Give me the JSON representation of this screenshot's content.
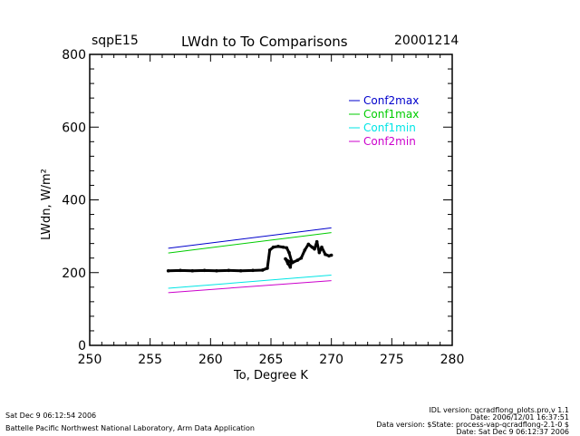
{
  "header": {
    "site": "sqpE15",
    "title": "LWdn to To Comparisons",
    "date": "20001214"
  },
  "footer": {
    "left_timestamp": "Sat Dec  9 06:12:54 2006",
    "left_org": "Battelle Pacific Northwest National Laboratory, Arm Data Application",
    "right_lines": [
      "IDL version: qcradflong_plots.pro,v 1.1",
      "Date: 2006/12/01 16:37:51",
      "Data version: $State: process-vap-qcradflong-2.1-0 $",
      "Date: Sat Dec  9 06:12:37 2006"
    ]
  },
  "colors": {
    "Conf2max": "#0000cc",
    "Conf1max": "#00cc00",
    "Conf1min": "#00e5e5",
    "Conf2min": "#cc00cc",
    "observed": "#000000"
  },
  "chart_data": {
    "type": "line",
    "title": "LWdn to To Comparisons",
    "xlabel": "To, Degree K",
    "ylabel": "LWdn, W/m²",
    "xlim": [
      250,
      280
    ],
    "ylim": [
      0,
      800
    ],
    "xticks": [
      250,
      255,
      260,
      265,
      270,
      275,
      280
    ],
    "yticks": [
      0,
      200,
      400,
      600,
      800
    ],
    "legend_position": "top-right",
    "series": [
      {
        "name": "Conf2max",
        "x": [
          256.5,
          270
        ],
        "y": [
          267,
          323
        ]
      },
      {
        "name": "Conf1max",
        "x": [
          256.5,
          270
        ],
        "y": [
          254,
          310
        ]
      },
      {
        "name": "Conf1min",
        "x": [
          256.5,
          270
        ],
        "y": [
          157,
          193
        ]
      },
      {
        "name": "Conf2min",
        "x": [
          256.5,
          270
        ],
        "y": [
          145,
          178
        ]
      }
    ],
    "observed": {
      "x": [
        256.5,
        257.5,
        258.5,
        259.5,
        260.5,
        261.5,
        262.5,
        263.5,
        264.3,
        264.7,
        264.9,
        265.2,
        265.6,
        266.0,
        266.3,
        266.5,
        266.7,
        266.6,
        266.4,
        266.2,
        266.4,
        266.8,
        267.2,
        267.5,
        267.8,
        268.1,
        268.4,
        268.6,
        268.8,
        269.0,
        269.2,
        269.5,
        269.8,
        270.0
      ],
      "y": [
        205,
        206,
        205,
        206,
        205,
        206,
        205,
        206,
        207,
        212,
        262,
        270,
        272,
        270,
        268,
        255,
        232,
        215,
        225,
        238,
        232,
        228,
        234,
        240,
        262,
        278,
        270,
        265,
        285,
        255,
        270,
        250,
        246,
        248
      ]
    }
  }
}
